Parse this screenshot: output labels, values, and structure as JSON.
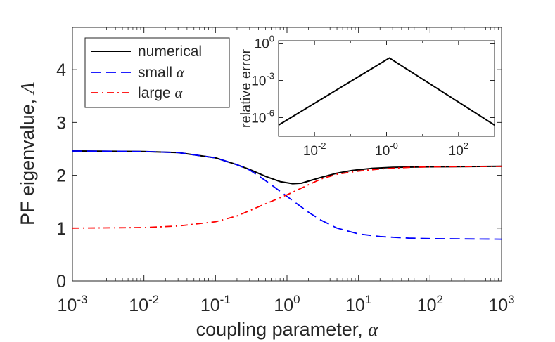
{
  "chart_data": {
    "type": "line",
    "main": {
      "xlabel_text": "coupling parameter, ",
      "xlabel_symbol": "α",
      "ylabel_text": "PF eigenvalue, ",
      "ylabel_symbol": "Λ",
      "x_scale": "log",
      "xlim": [
        0.001,
        1000
      ],
      "ylim": [
        0,
        4.8
      ],
      "x_ticks": [
        {
          "exp": -3,
          "base": "10",
          "sup": "-3"
        },
        {
          "exp": -2,
          "base": "10",
          "sup": "-2"
        },
        {
          "exp": -1,
          "base": "10",
          "sup": "-1"
        },
        {
          "exp": 0,
          "base": "10",
          "sup": "0"
        },
        {
          "exp": 1,
          "base": "10",
          "sup": "1"
        },
        {
          "exp": 2,
          "base": "10",
          "sup": "2"
        },
        {
          "exp": 3,
          "base": "10",
          "sup": "3"
        }
      ],
      "y_ticks": [
        {
          "value": 0,
          "label": "0"
        },
        {
          "value": 1,
          "label": "1"
        },
        {
          "value": 2,
          "label": "2"
        },
        {
          "value": 3,
          "label": "3"
        },
        {
          "value": 4,
          "label": "4"
        }
      ],
      "legend_position": "top-left",
      "series": [
        {
          "name": "numerical",
          "legend_text": "numerical",
          "legend_symbol": "",
          "color": "#000000",
          "style": "solid",
          "points": [
            [
              0.001,
              2.46
            ],
            [
              0.01,
              2.45
            ],
            [
              0.03,
              2.43
            ],
            [
              0.1,
              2.33
            ],
            [
              0.2,
              2.2
            ],
            [
              0.3,
              2.11
            ],
            [
              0.5,
              1.98
            ],
            [
              0.8,
              1.88
            ],
            [
              1.2,
              1.84
            ],
            [
              1.6,
              1.85
            ],
            [
              2,
              1.89
            ],
            [
              3,
              1.96
            ],
            [
              5,
              2.04
            ],
            [
              8,
              2.09
            ],
            [
              15,
              2.13
            ],
            [
              30,
              2.15
            ],
            [
              100,
              2.16
            ],
            [
              1000,
              2.17
            ]
          ]
        },
        {
          "name": "small alpha",
          "legend_text": "small ",
          "legend_symbol": "α",
          "color": "#0000ff",
          "style": "dashed",
          "points": [
            [
              0.001,
              2.46
            ],
            [
              0.01,
              2.45
            ],
            [
              0.03,
              2.43
            ],
            [
              0.1,
              2.33
            ],
            [
              0.2,
              2.2
            ],
            [
              0.3,
              2.1
            ],
            [
              0.5,
              1.9
            ],
            [
              1,
              1.6
            ],
            [
              2,
              1.3
            ],
            [
              3,
              1.15
            ],
            [
              5,
              1.0
            ],
            [
              10,
              0.89
            ],
            [
              20,
              0.84
            ],
            [
              50,
              0.81
            ],
            [
              100,
              0.8
            ],
            [
              1000,
              0.79
            ]
          ]
        },
        {
          "name": "large alpha",
          "legend_text": "large ",
          "legend_symbol": "α",
          "color": "#ff0000",
          "style": "dashdot",
          "points": [
            [
              0.001,
              1.0
            ],
            [
              0.01,
              1.01
            ],
            [
              0.03,
              1.04
            ],
            [
              0.1,
              1.12
            ],
            [
              0.2,
              1.23
            ],
            [
              0.3,
              1.33
            ],
            [
              0.5,
              1.46
            ],
            [
              1,
              1.63
            ],
            [
              2,
              1.82
            ],
            [
              3,
              1.93
            ],
            [
              5,
              2.02
            ],
            [
              10,
              2.08
            ],
            [
              20,
              2.12
            ],
            [
              50,
              2.15
            ],
            [
              100,
              2.16
            ],
            [
              1000,
              2.17
            ]
          ]
        }
      ]
    },
    "inset": {
      "ylabel": "relative error",
      "x_scale": "log",
      "y_scale": "log",
      "xlim": [
        0.001,
        1000
      ],
      "ylim_exp": [
        -7.5,
        0.2
      ],
      "x_ticks": [
        {
          "exp": -2,
          "base": "10",
          "sup": "-2"
        },
        {
          "exp": 0,
          "base": "10",
          "sup": "-0"
        },
        {
          "exp": 2,
          "base": "10",
          "sup": "2"
        }
      ],
      "y_ticks": [
        {
          "exp": 0,
          "base": "10",
          "sup": "0"
        },
        {
          "exp": -3,
          "base": "10",
          "sup": "-3"
        },
        {
          "exp": -6,
          "base": "10",
          "sup": "-6"
        }
      ],
      "series": [
        {
          "name": "relative error",
          "color": "#000000",
          "style": "solid",
          "points": [
            [
              0.001,
              2.5e-07
            ],
            [
              1.2,
              0.065
            ],
            [
              1000,
              2.5e-07
            ]
          ]
        }
      ]
    }
  }
}
